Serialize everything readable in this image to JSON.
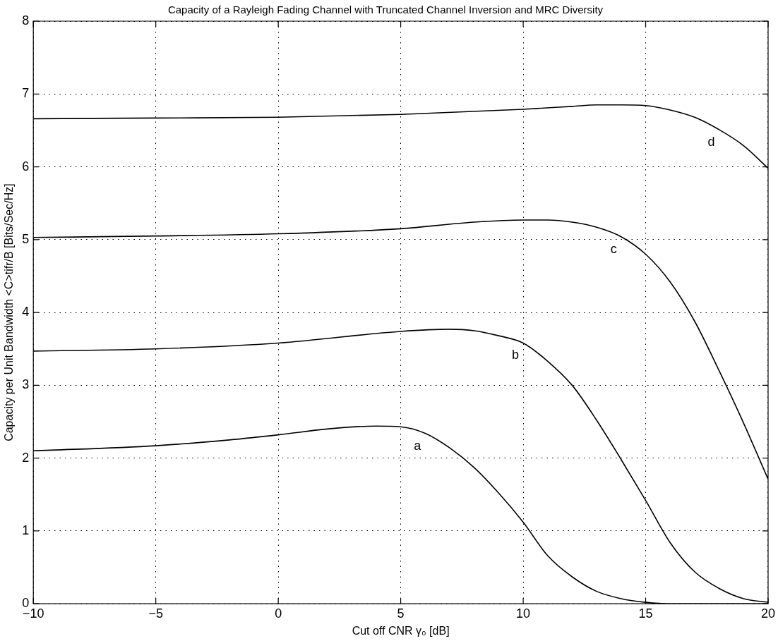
{
  "chart_data": {
    "type": "line",
    "title": "Capacity of a Rayleigh Fading Channel with Truncated Channel Inversion and MRC Diversity",
    "xlabel": "Cut off CNR γ₀ [dB]",
    "ylabel": "Capacity per Unit Bandwidth <C>tifr/B [Bits/Sec/Hz]",
    "xlim": [
      -10,
      20
    ],
    "xticks": [
      -10,
      -5,
      0,
      5,
      10,
      15,
      20
    ],
    "ylim": [
      0,
      8
    ],
    "yticks": [
      0,
      1,
      2,
      3,
      4,
      5,
      6,
      7,
      8
    ],
    "grid": true,
    "legend": false,
    "marker": "none",
    "line_style": "solid",
    "series": [
      {
        "name": "a",
        "color": "#000000",
        "x": [
          -10,
          -5,
          -2,
          0,
          2,
          4,
          5,
          6,
          7,
          8,
          9,
          10,
          11,
          12,
          13,
          14,
          15,
          16,
          20
        ],
        "values": [
          2.1,
          2.17,
          2.25,
          2.32,
          2.4,
          2.44,
          2.43,
          2.34,
          2.14,
          1.87,
          1.52,
          1.12,
          0.66,
          0.37,
          0.17,
          0.07,
          0.02,
          0,
          0
        ]
      },
      {
        "name": "b",
        "color": "#000000",
        "x": [
          -10,
          -5,
          0,
          5,
          7,
          8,
          9,
          10,
          11,
          12,
          13,
          14,
          15,
          16,
          17,
          18,
          19,
          20
        ],
        "values": [
          3.47,
          3.5,
          3.58,
          3.74,
          3.77,
          3.75,
          3.68,
          3.58,
          3.33,
          3.0,
          2.52,
          1.98,
          1.42,
          0.84,
          0.44,
          0.21,
          0.07,
          0.02
        ]
      },
      {
        "name": "c",
        "color": "#000000",
        "x": [
          -10,
          -5,
          0,
          5,
          8,
          10,
          11,
          12,
          13,
          14,
          15,
          16,
          17,
          18,
          19,
          20
        ],
        "values": [
          5.03,
          5.05,
          5.08,
          5.15,
          5.24,
          5.27,
          5.27,
          5.24,
          5.17,
          5.04,
          4.8,
          4.42,
          3.88,
          3.2,
          2.48,
          1.71
        ]
      },
      {
        "name": "d",
        "color": "#000000",
        "x": [
          -10,
          -5,
          0,
          5,
          10,
          12,
          13,
          14,
          15,
          16,
          17,
          18,
          19,
          20
        ],
        "values": [
          6.66,
          6.67,
          6.68,
          6.72,
          6.79,
          6.83,
          6.85,
          6.85,
          6.84,
          6.78,
          6.68,
          6.51,
          6.29,
          5.98
        ]
      }
    ]
  }
}
